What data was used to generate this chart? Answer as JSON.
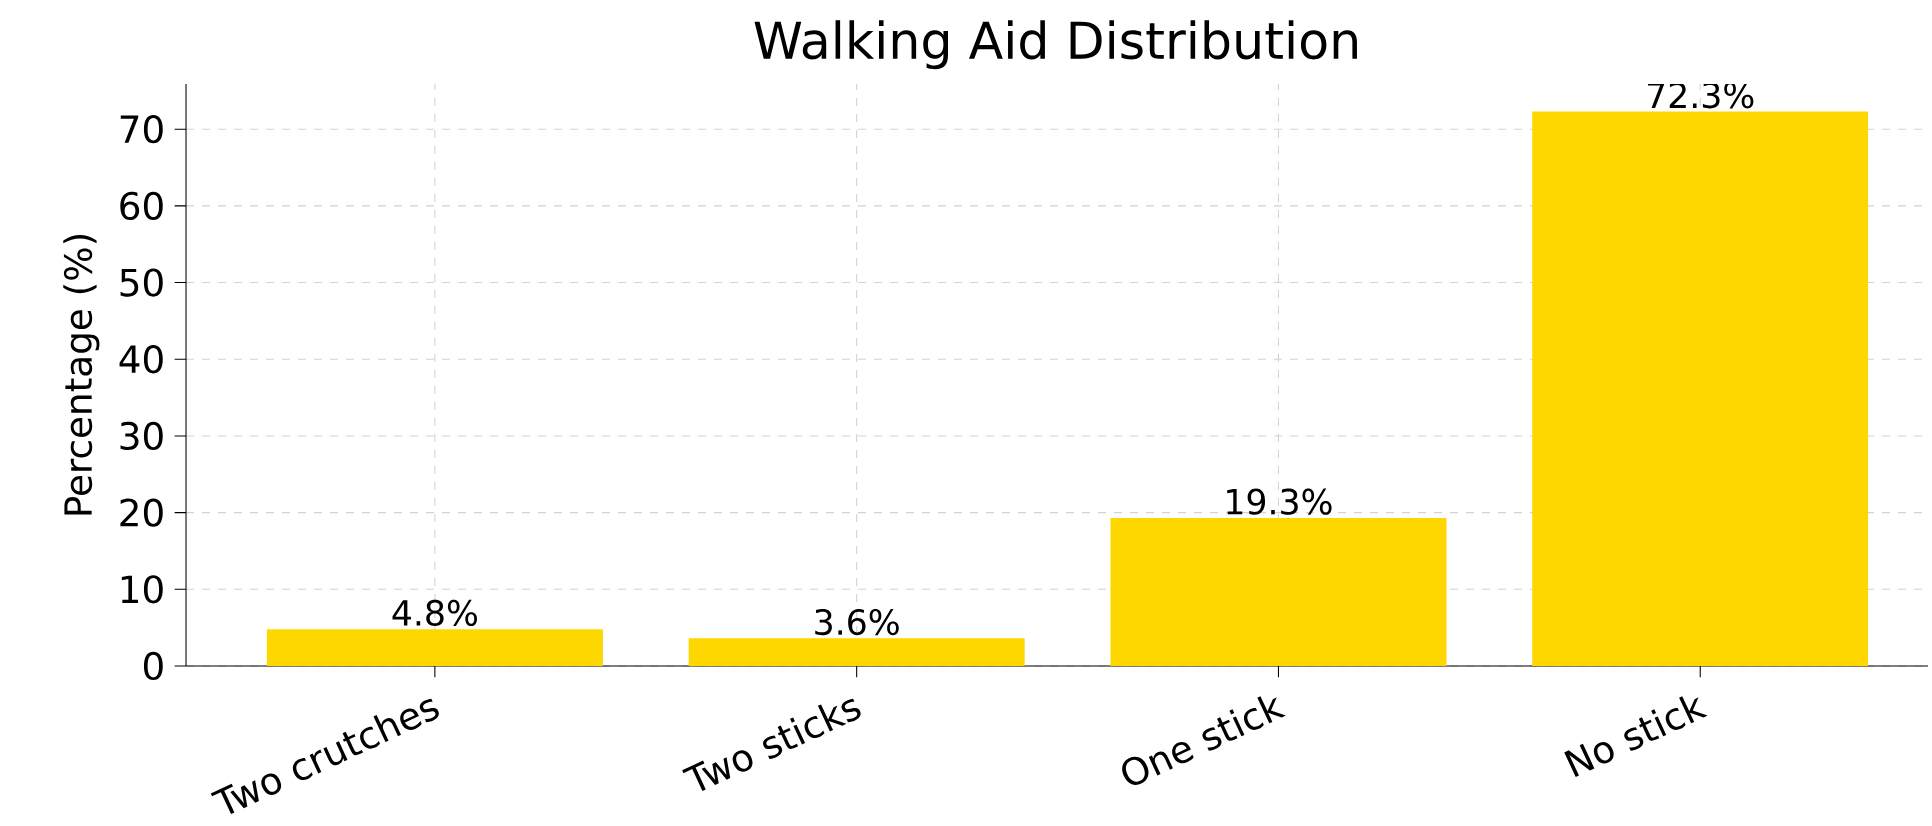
{
  "chart_data": {
    "type": "bar",
    "title": "Walking Aid Distribution",
    "ylabel": "Percentage (%)",
    "categories": [
      "Two crutches",
      "Two sticks",
      "One stick",
      "No stick"
    ],
    "values": [
      4.8,
      3.6,
      19.3,
      72.3
    ],
    "value_labels": [
      "4.8%",
      "3.6%",
      "19.3%",
      "72.3%"
    ],
    "color": "#ffd700",
    "ylim": [
      0,
      75.9
    ],
    "yticks": [
      0,
      10,
      20,
      30,
      40,
      50,
      60,
      70
    ],
    "grid": true
  }
}
